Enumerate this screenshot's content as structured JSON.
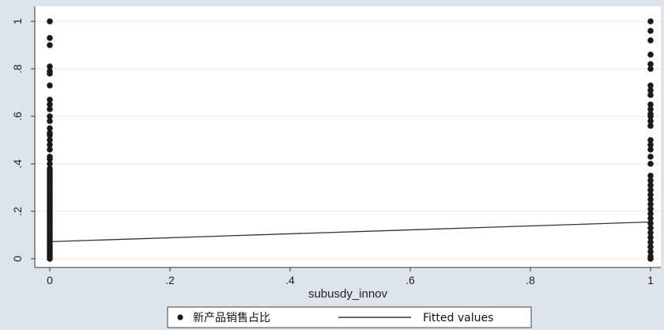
{
  "chart_data": {
    "type": "scatter",
    "xlabel": "subusdy_innov",
    "ylabel": "",
    "xlim": [
      0,
      1
    ],
    "ylim": [
      0,
      1
    ],
    "xticks": [
      0,
      0.2,
      0.4,
      0.6,
      0.8,
      1
    ],
    "xtick_labels": [
      "0",
      ".2",
      ".4",
      ".6",
      ".8",
      "1"
    ],
    "yticks": [
      0,
      0.2,
      0.4,
      0.6,
      0.8,
      1
    ],
    "ytick_labels": [
      "0",
      ".2",
      ".4",
      ".6",
      ".8",
      "1"
    ],
    "grid": true,
    "legend_position": "bottom",
    "series": [
      {
        "name": "新产品销售占比",
        "kind": "scatter",
        "color": "#1a1a1a",
        "points": [
          [
            0,
            1.0
          ],
          [
            0,
            0.93
          ],
          [
            0,
            0.9
          ],
          [
            0,
            0.81
          ],
          [
            0,
            0.79
          ],
          [
            0,
            0.78
          ],
          [
            0,
            0.73
          ],
          [
            0,
            0.67
          ],
          [
            0,
            0.65
          ],
          [
            0,
            0.63
          ],
          [
            0,
            0.6
          ],
          [
            0,
            0.58
          ],
          [
            0,
            0.55
          ],
          [
            0,
            0.53
          ],
          [
            0,
            0.52
          ],
          [
            0,
            0.5
          ],
          [
            0,
            0.48
          ],
          [
            0,
            0.46
          ],
          [
            0,
            0.43
          ],
          [
            0,
            0.42
          ],
          [
            0,
            0.4
          ],
          [
            0,
            0.38
          ],
          [
            0,
            0.37
          ],
          [
            0,
            0.36
          ],
          [
            0,
            0.35
          ],
          [
            0,
            0.34
          ],
          [
            0,
            0.33
          ],
          [
            0,
            0.32
          ],
          [
            0,
            0.31
          ],
          [
            0,
            0.3
          ],
          [
            0,
            0.29
          ],
          [
            0,
            0.28
          ],
          [
            0,
            0.27
          ],
          [
            0,
            0.26
          ],
          [
            0,
            0.25
          ],
          [
            0,
            0.24
          ],
          [
            0,
            0.23
          ],
          [
            0,
            0.22
          ],
          [
            0,
            0.21
          ],
          [
            0,
            0.2
          ],
          [
            0,
            0.19
          ],
          [
            0,
            0.18
          ],
          [
            0,
            0.17
          ],
          [
            0,
            0.16
          ],
          [
            0,
            0.15
          ],
          [
            0,
            0.14
          ],
          [
            0,
            0.13
          ],
          [
            0,
            0.12
          ],
          [
            0,
            0.11
          ],
          [
            0,
            0.1
          ],
          [
            0,
            0.09
          ],
          [
            0,
            0.08
          ],
          [
            0,
            0.07
          ],
          [
            0,
            0.06
          ],
          [
            0,
            0.05
          ],
          [
            0,
            0.04
          ],
          [
            0,
            0.03
          ],
          [
            0,
            0.02
          ],
          [
            0,
            0.01
          ],
          [
            0,
            0.0
          ],
          [
            1,
            1.0
          ],
          [
            1,
            0.96
          ],
          [
            1,
            0.92
          ],
          [
            1,
            0.86
          ],
          [
            1,
            0.82
          ],
          [
            1,
            0.8
          ],
          [
            1,
            0.73
          ],
          [
            1,
            0.71
          ],
          [
            1,
            0.69
          ],
          [
            1,
            0.65
          ],
          [
            1,
            0.63
          ],
          [
            1,
            0.61
          ],
          [
            1,
            0.6
          ],
          [
            1,
            0.58
          ],
          [
            1,
            0.56
          ],
          [
            1,
            0.5
          ],
          [
            1,
            0.48
          ],
          [
            1,
            0.46
          ],
          [
            1,
            0.43
          ],
          [
            1,
            0.4
          ],
          [
            1,
            0.35
          ],
          [
            1,
            0.33
          ],
          [
            1,
            0.31
          ],
          [
            1,
            0.29
          ],
          [
            1,
            0.27
          ],
          [
            1,
            0.25
          ],
          [
            1,
            0.23
          ],
          [
            1,
            0.21
          ],
          [
            1,
            0.19
          ],
          [
            1,
            0.17
          ],
          [
            1,
            0.15
          ],
          [
            1,
            0.13
          ],
          [
            1,
            0.11
          ],
          [
            1,
            0.09
          ],
          [
            1,
            0.07
          ],
          [
            1,
            0.05
          ],
          [
            1,
            0.03
          ],
          [
            1,
            0.01
          ],
          [
            1,
            0.0
          ]
        ]
      },
      {
        "name": "Fitted values",
        "kind": "line",
        "color": "#333333",
        "x": [
          0,
          1
        ],
        "y": [
          0.072,
          0.155
        ]
      }
    ]
  }
}
